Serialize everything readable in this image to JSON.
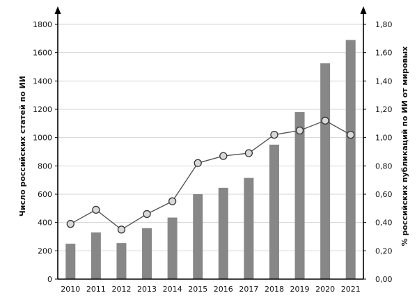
{
  "chart_data": {
    "type": "bar",
    "title": "",
    "xlabel": "",
    "ylabel": "Число российских статей по ИИ",
    "y2label": "% российских публикаций по ИИ от мировых",
    "categories": [
      "2010",
      "2011",
      "2012",
      "2013",
      "2014",
      "2015",
      "2016",
      "2017",
      "2018",
      "2019",
      "2020",
      "2021"
    ],
    "ylim": [
      0,
      1800
    ],
    "y2lim": [
      0,
      1.8
    ],
    "yticks": [
      "0",
      "200",
      "400",
      "600",
      "800",
      "1000",
      "1200",
      "1400",
      "1600",
      "1800"
    ],
    "y2ticks": [
      "0,00",
      "0,20",
      "0,40",
      "0,60",
      "0,80",
      "1,00",
      "1,20",
      "1,40",
      "1,60",
      "1,80"
    ],
    "grid": true,
    "series": [
      {
        "type": "bar",
        "axis": "left",
        "color": "#878787",
        "values": [
          250,
          330,
          255,
          360,
          435,
          600,
          645,
          715,
          950,
          1180,
          1525,
          1690
        ]
      },
      {
        "type": "line",
        "axis": "right",
        "color": "#555555",
        "marker_fill": "#d9d9d9",
        "values": [
          0.39,
          0.49,
          0.35,
          0.46,
          0.55,
          0.82,
          0.87,
          0.89,
          1.02,
          1.05,
          1.12,
          1.02
        ]
      }
    ]
  }
}
